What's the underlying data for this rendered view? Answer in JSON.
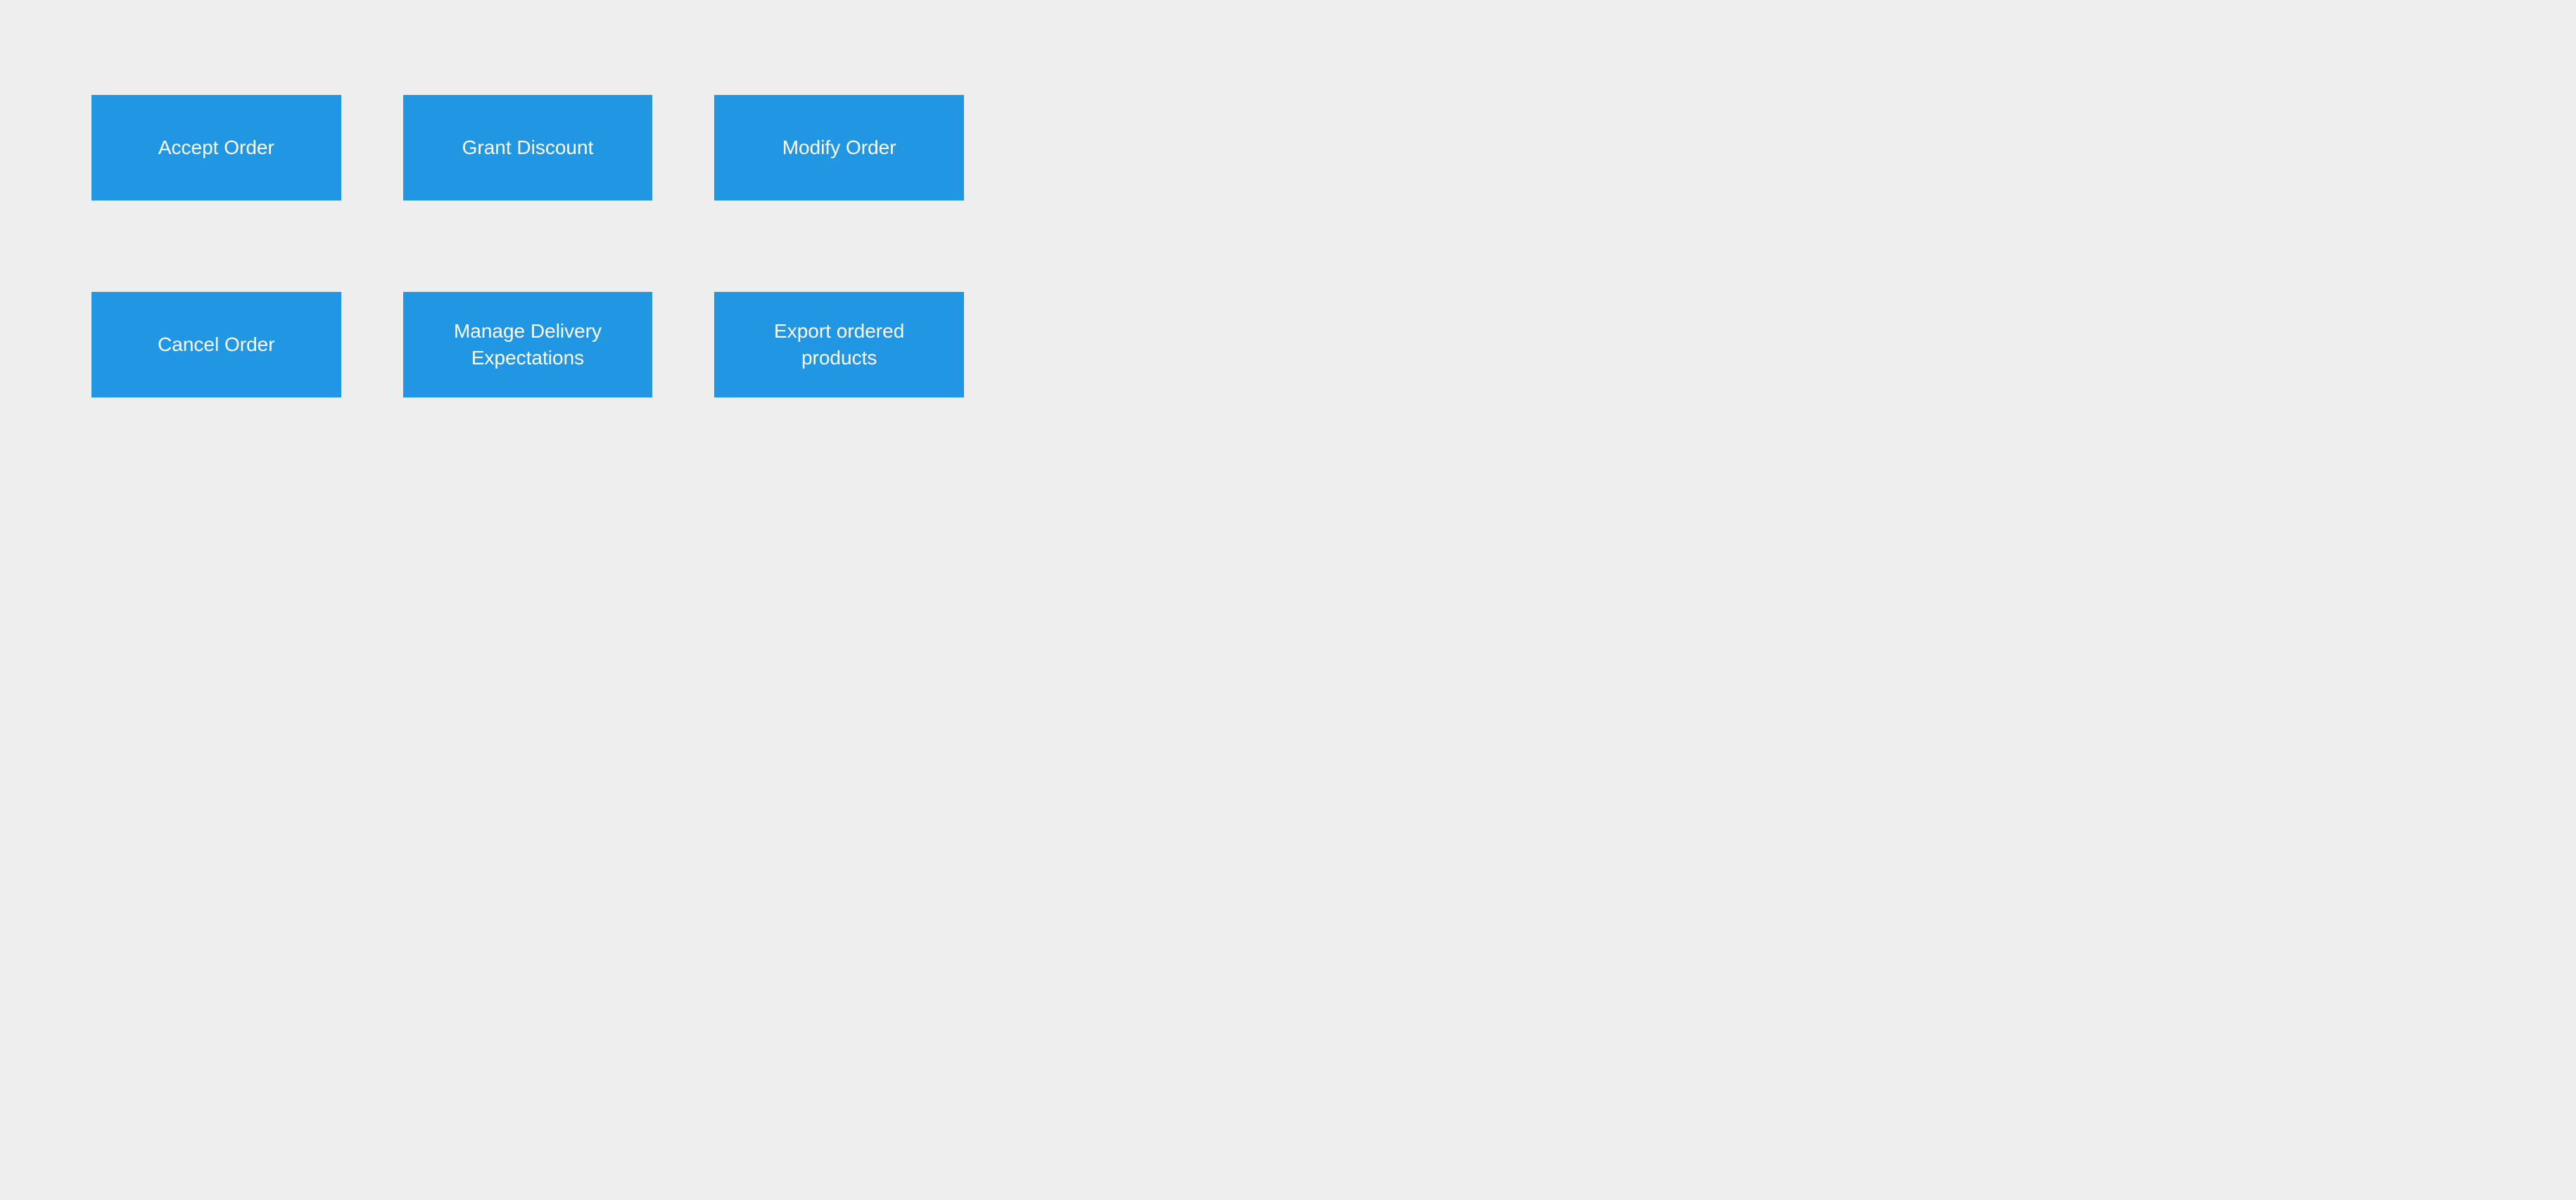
{
  "layout": {
    "background_color": "#eeeeee",
    "button_color": "#2196e3",
    "button_text_color": "#ffffff",
    "button_font_size": 28,
    "grid_columns": 3,
    "grid_rows": 2,
    "column_gap": 88,
    "row_gap": 130,
    "button_height": 150
  },
  "buttons": [
    {
      "label": "Accept Order"
    },
    {
      "label": "Grant Discount"
    },
    {
      "label": "Modify Order"
    },
    {
      "label": "Cancel Order"
    },
    {
      "label": "Manage Delivery Expectations"
    },
    {
      "label": "Export ordered products"
    }
  ]
}
